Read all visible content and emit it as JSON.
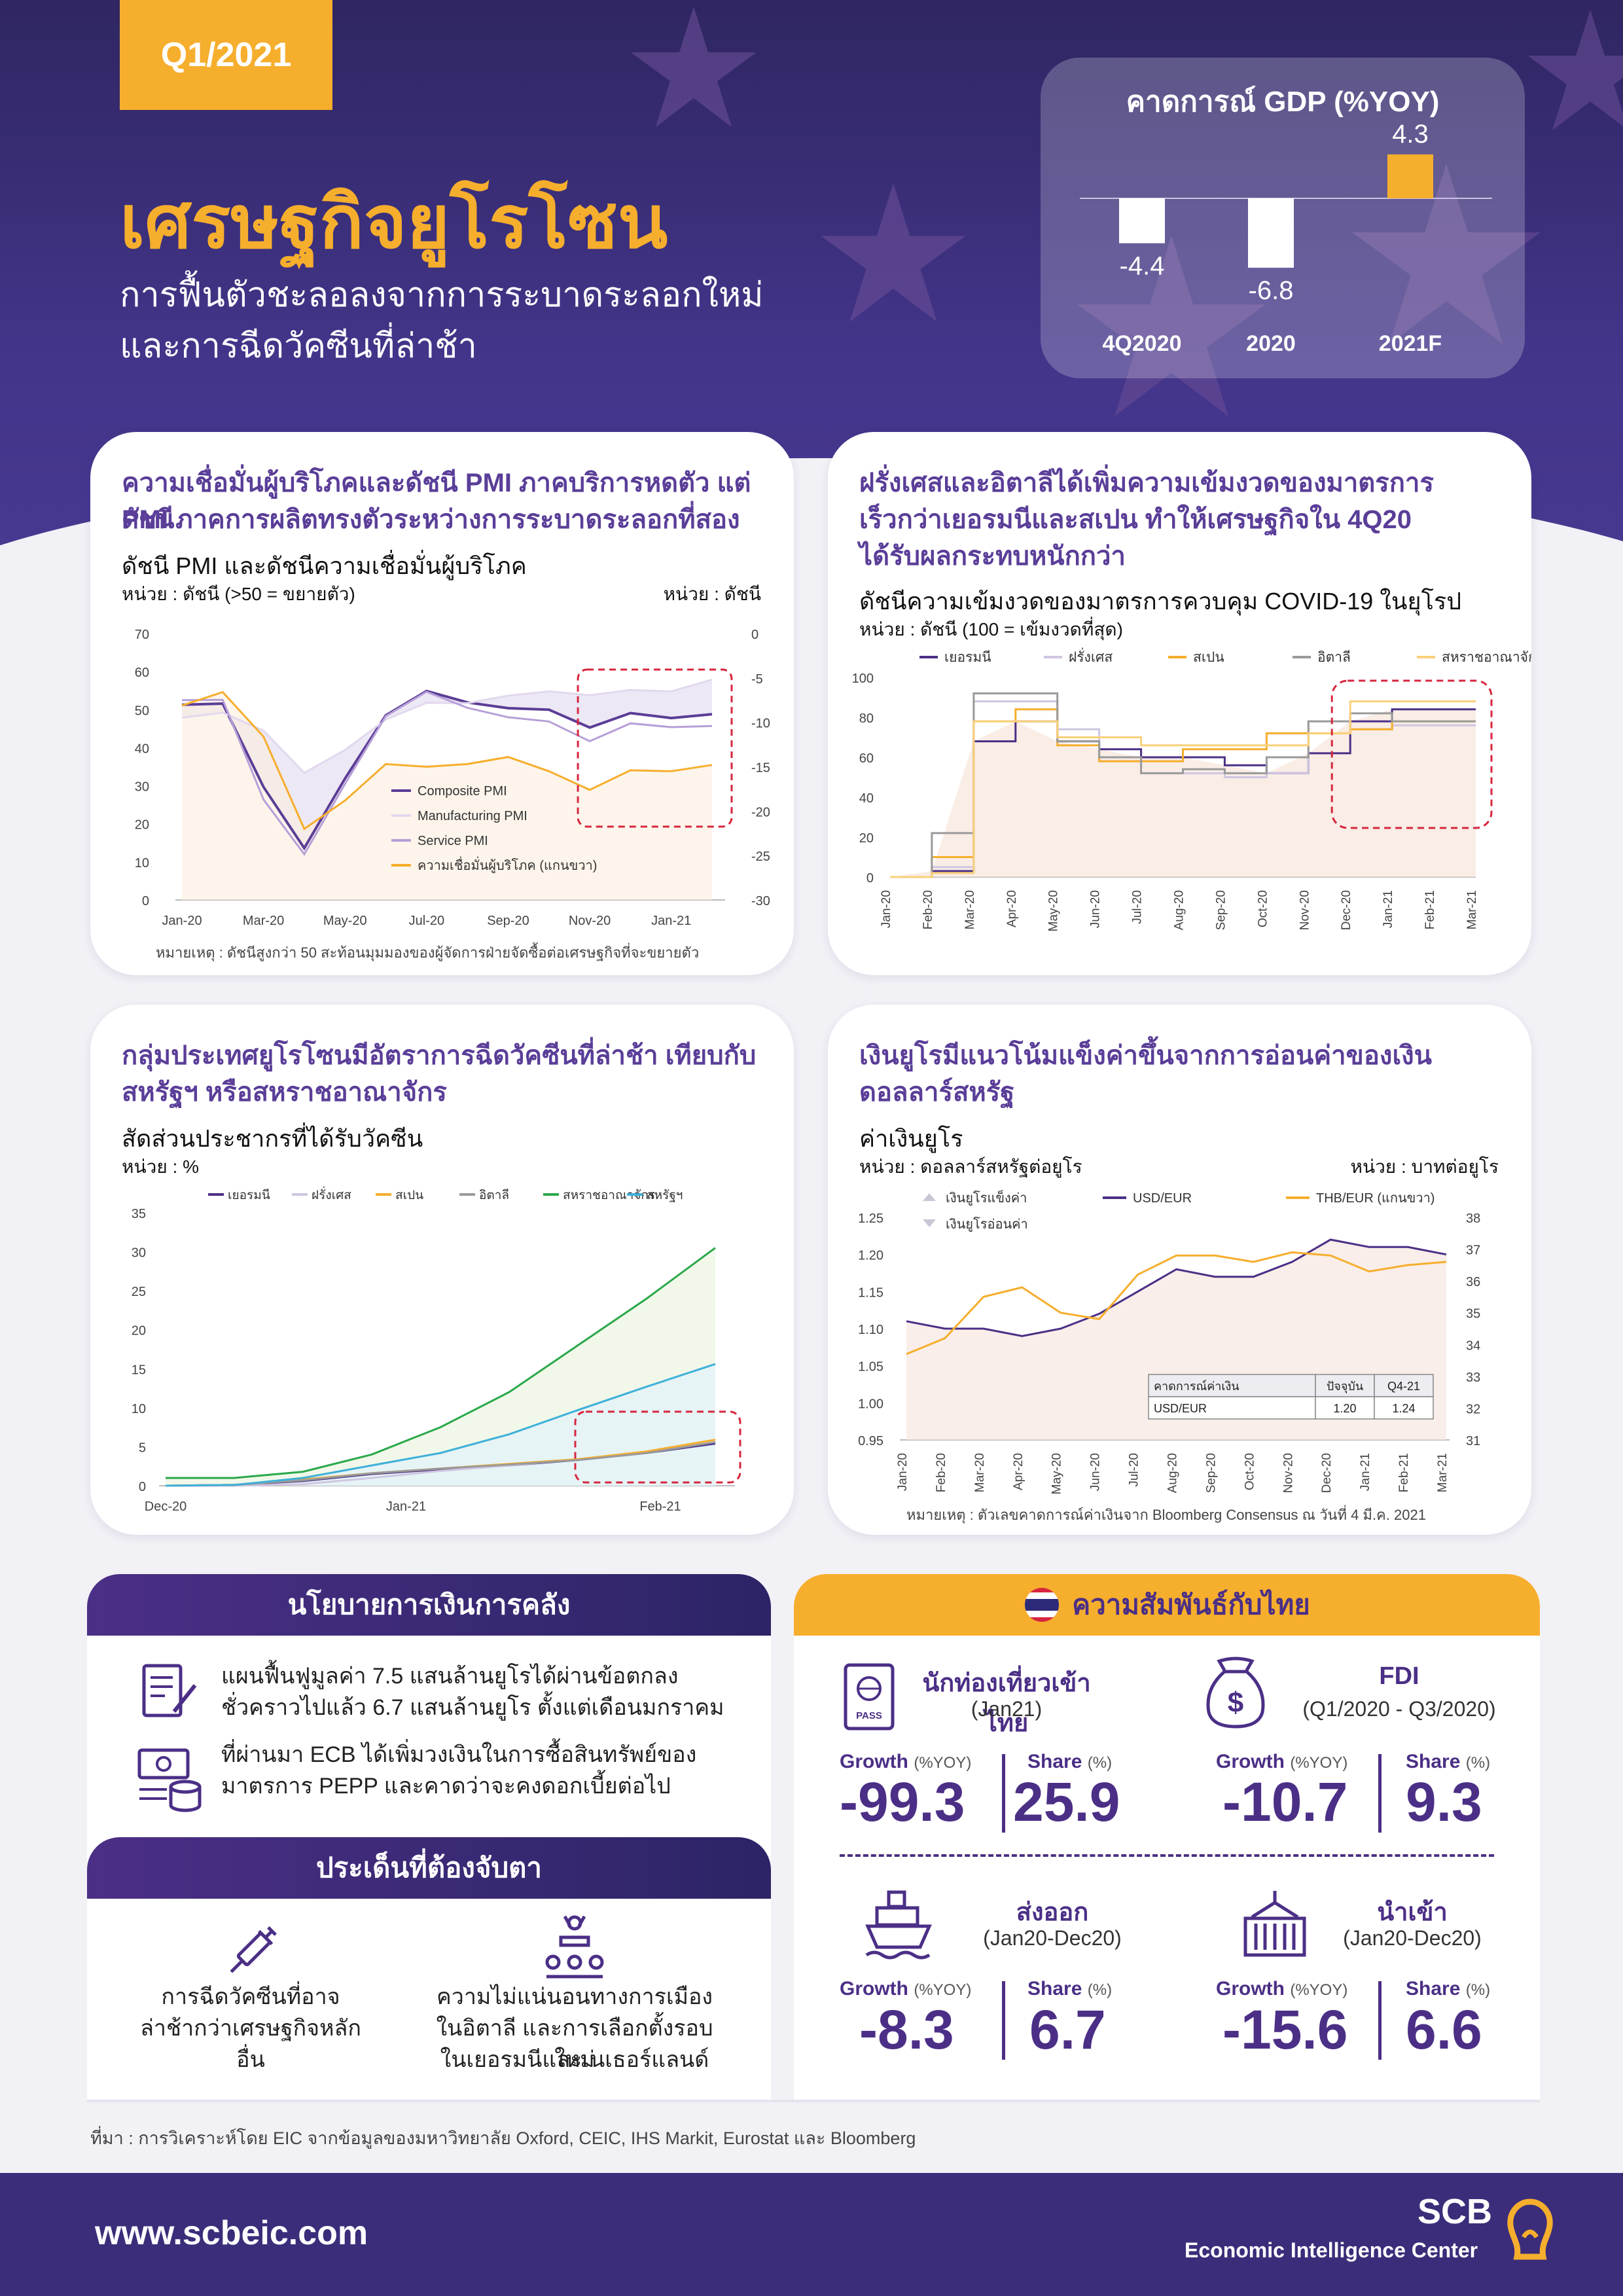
{
  "header": {
    "badge": "Q1/2021",
    "title": "เศรษฐกิจยูโรโซน",
    "subtitle_line1": "การฟื้นตัวชะลอลงจากการระบาดระลอกใหม่",
    "subtitle_line2": "และการฉีดวัคซีนที่ล่าช้า"
  },
  "gdp": {
    "title": "คาดการณ์ GDP (%YOY)",
    "chart_data": {
      "type": "bar",
      "categories": [
        "4Q2020",
        "2020",
        "2021F"
      ],
      "values": [
        -4.4,
        -6.8,
        4.3
      ],
      "labels": [
        "-4.4",
        "-6.8",
        "4.3"
      ],
      "colors": [
        "#ffffff",
        "#ffffff",
        "#f6ae2d"
      ]
    }
  },
  "card1": {
    "title_line1": "ความเชื่อมั่นผู้บริโภคและดัชนี PMI ภาคบริการหดตัว แต่ดัชนี",
    "title_line2": "PMI ภาคการผลิตทรงตัวระหว่างการระบาดระลอกที่สอง",
    "subtitle": "ดัชนี PMI และดัชนีความเชื่อมั่นผู้บริโภค",
    "unit_left": "หน่วย : ดัชนี (>50 = ขยายตัว)",
    "unit_right": "หน่วย : ดัชนี",
    "note": "หมายเหตุ : ดัชนีสูงกว่า 50 สะท้อนมุมมองของผู้จัดการฝ่ายจัดซื้อต่อเศรษฐกิจที่จะขยายตัว",
    "chart_data": {
      "type": "line",
      "x": [
        "Jan-20",
        "Feb-20",
        "Mar-20",
        "Apr-20",
        "May-20",
        "Jun-20",
        "Jul-20",
        "Aug-20",
        "Sep-20",
        "Oct-20",
        "Nov-20",
        "Dec-20",
        "Jan-21",
        "Feb-21"
      ],
      "x_ticks": [
        "Jan-20",
        "Mar-20",
        "May-20",
        "Jul-20",
        "Sep-20",
        "Nov-20",
        "Jan-21"
      ],
      "ylim": [
        0,
        70
      ],
      "y_ticks": [
        0,
        10,
        20,
        30,
        40,
        50,
        60,
        70
      ],
      "y2lim": [
        -30,
        0
      ],
      "y2_ticks": [
        -30,
        -25,
        -20,
        -15,
        -10,
        -5,
        0
      ],
      "series": [
        {
          "name": "Composite PMI",
          "axis": "left",
          "color": "#5b3d96",
          "values": [
            51.3,
            51.6,
            29.7,
            13.6,
            31.9,
            48.5,
            54.9,
            51.9,
            50.4,
            50.0,
            45.3,
            49.1,
            47.8,
            48.8
          ]
        },
        {
          "name": "Manufacturing PMI",
          "axis": "left",
          "color": "#e2d8ee",
          "values": [
            47.9,
            49.2,
            44.5,
            33.4,
            39.4,
            47.4,
            51.8,
            51.7,
            53.7,
            54.8,
            53.8,
            55.2,
            54.8,
            57.9
          ]
        },
        {
          "name": "Service PMI",
          "axis": "left",
          "color": "#b79fd8",
          "values": [
            52.5,
            52.6,
            26.4,
            12.0,
            30.5,
            48.3,
            54.7,
            50.5,
            48.0,
            46.9,
            41.7,
            46.4,
            45.4,
            45.7
          ]
        },
        {
          "name": "ความเชื่อมั่นผู้บริโภค (แกนขวา)",
          "axis": "right",
          "color": "#f6ae2d",
          "values": [
            -8.1,
            -6.6,
            -11.6,
            -22.0,
            -18.8,
            -14.7,
            -15.0,
            -14.7,
            -13.9,
            -15.5,
            -17.6,
            -15.4,
            -15.5,
            -14.8
          ]
        }
      ]
    }
  },
  "card2": {
    "title_line1": "ฝรั่งเศสและอิตาลีได้เพิ่มความเข้มงวดของมาตรการ",
    "title_line2": "เร็วกว่าเยอรมนีและสเปน ทำให้เศรษฐกิจใน 4Q20",
    "title_line3": "ได้รับผลกระทบหนักกว่า",
    "subtitle": "ดัชนีความเข้มงวดของมาตรการควบคุม COVID-19 ในยุโรป",
    "unit": "หน่วย : ดัชนี (100 = เข้มงวดที่สุด)",
    "chart_data": {
      "type": "line",
      "x_ticks": [
        "Jan-20",
        "Feb-20",
        "Mar-20",
        "Apr-20",
        "May-20",
        "Jun-20",
        "Jul-20",
        "Aug-20",
        "Sep-20",
        "Oct-20",
        "Nov-20",
        "Dec-20",
        "Jan-21",
        "Feb-21",
        "Mar-21"
      ],
      "ylim": [
        0,
        100
      ],
      "y_ticks": [
        0,
        20,
        40,
        60,
        80,
        100
      ],
      "series": [
        {
          "name": "เยอรมนี",
          "color": "#4b2f86",
          "values": [
            0,
            3,
            68,
            78,
            68,
            64,
            60,
            60,
            56,
            52,
            62,
            78,
            84,
            84,
            84
          ]
        },
        {
          "name": "ฝรั่งเศส",
          "color": "#cfc6e2",
          "values": [
            0,
            5,
            88,
            88,
            74,
            58,
            52,
            52,
            50,
            52,
            78,
            74,
            76,
            76,
            76
          ]
        },
        {
          "name": "สเปน",
          "color": "#f6ae2d",
          "values": [
            0,
            10,
            78,
            84,
            66,
            58,
            58,
            64,
            64,
            72,
            72,
            74,
            78,
            78,
            78
          ]
        },
        {
          "name": "อิตาลี",
          "color": "#9a9a9a",
          "values": [
            0,
            22,
            92,
            92,
            68,
            60,
            52,
            54,
            52,
            60,
            78,
            82,
            78,
            78,
            78
          ]
        },
        {
          "name": "สหราชอาณาจักร",
          "color": "#f9d07a",
          "values": [
            0,
            2,
            78,
            78,
            70,
            70,
            66,
            66,
            66,
            66,
            72,
            88,
            88,
            88,
            88
          ]
        }
      ]
    }
  },
  "card3": {
    "title_line1": "กลุ่มประเทศยูโรโซนมีอัตราการฉีดวัคซีนที่ล่าช้า เทียบกับ",
    "title_line2": "สหรัฐฯ หรือสหราชอาณาจักร",
    "subtitle": "สัดส่วนประชากรที่ได้รับวัคซีน",
    "unit": "หน่วย : %",
    "chart_data": {
      "type": "line",
      "x_ticks": [
        "Dec-20",
        "Jan-21",
        "Feb-21"
      ],
      "ylim": [
        0,
        35
      ],
      "y_ticks": [
        0,
        5,
        10,
        15,
        20,
        25,
        30,
        35
      ],
      "series": [
        {
          "name": "เยอรมนี",
          "color": "#4b2f86",
          "values": [
            0,
            0.1,
            0.6,
            1.5,
            2.1,
            2.6,
            3.3,
            4.2,
            5.4
          ]
        },
        {
          "name": "ฝรั่งเศส",
          "color": "#cfc6e2",
          "values": [
            0,
            0,
            0.2,
            1.0,
            1.9,
            2.6,
            3.4,
            4.3,
            5.6
          ]
        },
        {
          "name": "สเปน",
          "color": "#f6ae2d",
          "values": [
            0,
            0.1,
            0.8,
            1.6,
            2.2,
            2.8,
            3.4,
            4.4,
            5.9
          ]
        },
        {
          "name": "อิตาลี",
          "color": "#9a9a9a",
          "values": [
            0,
            0.1,
            0.7,
            1.6,
            2.2,
            2.7,
            3.3,
            4.2,
            5.6
          ]
        },
        {
          "name": "สหราชอาณาจักร",
          "color": "#2aa84a",
          "values": [
            1.0,
            1.0,
            1.8,
            4.0,
            7.5,
            12.0,
            18.0,
            24.0,
            30.5
          ]
        },
        {
          "name": "สหรัฐฯ",
          "color": "#3fb0d9",
          "values": [
            0.0,
            0.1,
            1.0,
            2.6,
            4.2,
            6.6,
            9.7,
            12.7,
            15.6
          ]
        }
      ]
    }
  },
  "card4": {
    "title_line1": "เงินยูโรมีแนวโน้มแข็งค่าขึ้นจากการอ่อนค่าของเงิน",
    "title_line2": "ดอลลาร์สหรัฐ",
    "subtitle": "ค่าเงินยูโร",
    "unit_left": "หน่วย : ดอลลาร์สหรัฐต่อยูโร",
    "unit_right": "หน่วย : บาทต่อยูโร",
    "legend_up": "เงินยูโรแข็งค่า",
    "legend_down": "เงินยูโรอ่อนค่า",
    "note": "หมายเหตุ : ตัวเลขคาดการณ์ค่าเงินจาก Bloomberg Consensus ณ วันที่ 4 มี.ค. 2021",
    "table": {
      "headers": [
        "คาดการณ์ค่าเงิน",
        "ปัจจุบัน",
        "Q4-21"
      ],
      "row": [
        "USD/EUR",
        "1.20",
        "1.24"
      ]
    },
    "chart_data": {
      "type": "line",
      "x_ticks": [
        "Jan-20",
        "Feb-20",
        "Mar-20",
        "Apr-20",
        "May-20",
        "Jun-20",
        "Jul-20",
        "Aug-20",
        "Sep-20",
        "Oct-20",
        "Nov-20",
        "Dec-20",
        "Jan-21",
        "Feb-21",
        "Mar-21"
      ],
      "ylim": [
        0.95,
        1.25
      ],
      "y_ticks": [
        0.95,
        1.0,
        1.05,
        1.1,
        1.15,
        1.2,
        1.25
      ],
      "y2lim": [
        31,
        38
      ],
      "y2_ticks": [
        31,
        32,
        33,
        34,
        35,
        36,
        37,
        38
      ],
      "series": [
        {
          "name": "USD/EUR",
          "axis": "left",
          "color": "#4b2f86",
          "values": [
            1.11,
            1.1,
            1.1,
            1.09,
            1.1,
            1.12,
            1.15,
            1.18,
            1.17,
            1.17,
            1.19,
            1.22,
            1.21,
            1.21,
            1.2
          ]
        },
        {
          "name": "THB/EUR (แกนขวา)",
          "axis": "right",
          "color": "#f6ae2d",
          "values": [
            33.7,
            34.2,
            35.5,
            35.8,
            35.0,
            34.8,
            36.2,
            36.8,
            36.8,
            36.6,
            36.9,
            36.8,
            36.3,
            36.5,
            36.6
          ]
        }
      ]
    }
  },
  "policy": {
    "head": "นโยบายการเงินการคลัง",
    "item1_line1": "แผนฟื้นฟูมูลค่า 7.5 แสนล้านยูโรได้ผ่านข้อตกลง",
    "item1_line2": "ชั่วคราวไปแล้ว 6.7 แสนล้านยูโร ตั้งแต่เดือนมกราคม",
    "item2_line1": "ที่ผ่านมา ECB ได้เพิ่มวงเงินในการซื้อสินทรัพย์ของ",
    "item2_line2": "มาตรการ PEPP และคาดว่าจะคงดอกเบี้ยต่อไป"
  },
  "watch": {
    "head": "ประเด็นที่ต้องจับตา",
    "item1_line1": "การฉีดวัคซีนที่อาจ",
    "item1_line2": "ล่าช้ากว่าเศรษฐกิจหลักอื่น",
    "item2_line1": "ความไม่แน่นอนทางการเมือง",
    "item2_line2": "ในอิตาลี และการเลือกตั้งรอบใหม่",
    "item2_line3": "ในเยอรมนีและเนเธอร์แลนด์"
  },
  "thai": {
    "head": "ความสัมพันธ์กับไทย",
    "growth": "Growth",
    "growth_unit": "(%YOY)",
    "share": "Share",
    "share_unit": "(%)",
    "tourist": {
      "title": "นักท่องเที่ยวเข้าไทย",
      "period": "(Jan21)",
      "growth": "-99.3",
      "share": "25.9"
    },
    "fdi": {
      "title": "FDI",
      "period": "(Q1/2020 - Q3/2020)",
      "growth": "-10.7",
      "share": "9.3"
    },
    "export": {
      "title": "ส่งออก",
      "period": "(Jan20-Dec20)",
      "growth": "-8.3",
      "share": "6.7"
    },
    "import": {
      "title": "นำเข้า",
      "period": "(Jan20-Dec20)",
      "growth": "-15.6",
      "share": "6.6"
    }
  },
  "source": "ที่มา : การวิเคราะห์โดย EIC จากข้อมูลของมหาวิทยาลัย Oxford, CEIC, IHS Markit, Eurostat และ Bloomberg",
  "footer": {
    "url": "www.scbeic.com",
    "brand": "SCB",
    "brand_sub": "Economic Intelligence Center"
  }
}
